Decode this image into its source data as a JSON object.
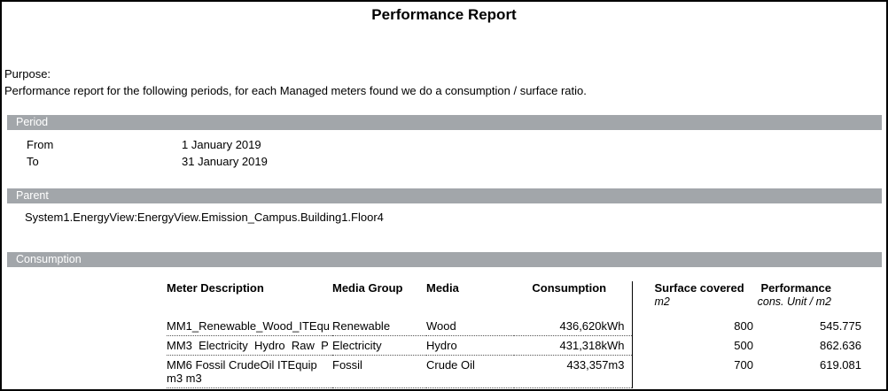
{
  "report": {
    "title": "Performance Report",
    "purpose_label": "Purpose:",
    "purpose_text": "Performance report for the following periods, for each Managed meters found we do a consumption / surface ratio."
  },
  "period": {
    "section_label": "Period",
    "from_label": "From",
    "from_value": "1 January 2019",
    "to_label": "To",
    "to_value": "31 January 2019"
  },
  "parent": {
    "section_label": "Parent",
    "value": "System1.EnergyView:EnergyView.Emission_Campus.Building1.Floor4"
  },
  "consumption": {
    "section_label": "Consumption",
    "columns": {
      "meter_description": "Meter Description",
      "media_group": "Media Group",
      "media": "Media",
      "consumption": "Consumption",
      "surface_covered": "Surface covered",
      "surface_unit": "m2",
      "performance": "Performance",
      "performance_unit": "cons. Unit / m2"
    },
    "rows": [
      {
        "meter_description": "MM1_Renewable_Wood_ITEqu",
        "media_group": "Renewable",
        "media": "Wood",
        "consumption": "436,620kWh",
        "surface_covered": "800",
        "performance": "545.775"
      },
      {
        "meter_description": "MM3  Electricity  Hydro  Raw  P",
        "media_group": "Electricity",
        "media": "Hydro",
        "consumption": "431,318kWh",
        "surface_covered": "500",
        "performance": "862.636"
      },
      {
        "meter_description": "MM6 Fossil CrudeOil ITEquip m3 m3",
        "media_group": "Fossil",
        "media": "Crude Oil",
        "consumption": "433,357m3",
        "surface_covered": "700",
        "performance": "619.081"
      }
    ]
  },
  "colors": {
    "section_bar_bg": "#a2a6aa",
    "section_bar_text": "#ffffff",
    "text": "#000000",
    "page_border": "#000000"
  }
}
